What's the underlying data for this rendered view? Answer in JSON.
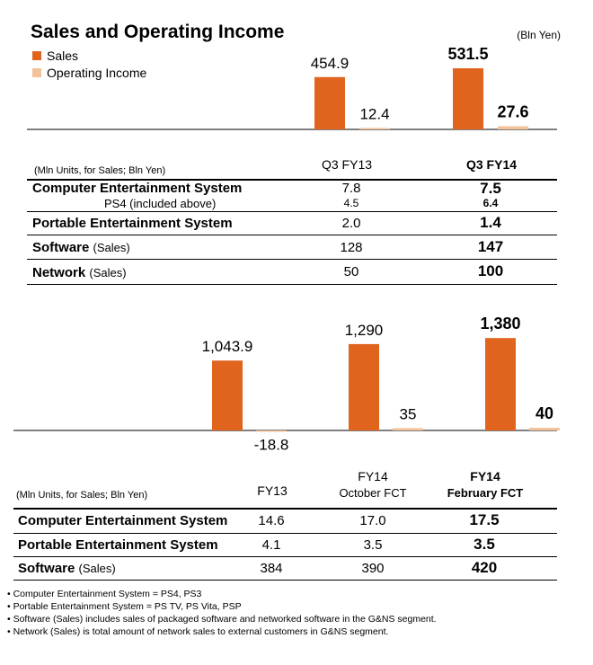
{
  "header": {
    "title": "Sales and Operating Income",
    "unit": "(Bln Yen)"
  },
  "legend": [
    {
      "label": "Sales",
      "color": "#E0641E"
    },
    {
      "label": "Operating Income",
      "color": "#F2C29B"
    }
  ],
  "chart_data": [
    {
      "type": "bar",
      "categories": [
        "Q3 FY13",
        "Q3 FY14"
      ],
      "series": [
        {
          "name": "Sales",
          "values": [
            454.9,
            531.5
          ],
          "labels": [
            "454.9",
            "531.5"
          ],
          "color": "#E0641E"
        },
        {
          "name": "Operating Income",
          "values": [
            12.4,
            27.6
          ],
          "labels": [
            "12.4",
            "27.6"
          ],
          "color": "#F2C29B"
        }
      ],
      "bold_category": 1
    },
    {
      "type": "bar",
      "categories": [
        "FY13",
        "FY14 October FCT",
        "FY14 February FCT"
      ],
      "series": [
        {
          "name": "Sales",
          "values": [
            1043.9,
            1290,
            1380
          ],
          "labels": [
            "1,043.9",
            "1,290",
            "1,380"
          ],
          "color": "#E0641E"
        },
        {
          "name": "Operating Income",
          "values": [
            -18.8,
            35,
            40
          ],
          "labels": [
            "-18.8",
            "35",
            "40"
          ],
          "color": "#F2C29B"
        }
      ],
      "bold_category": 2
    }
  ],
  "table1": {
    "unit": "(Mln Units, for Sales; Bln Yen)",
    "headers": [
      "Q3 FY13",
      "Q3 FY14"
    ],
    "rows": [
      {
        "label": "Computer Entertainment System",
        "sub": "",
        "values": [
          "7.8",
          "7.5"
        ]
      },
      {
        "label": "PS4 (included above)",
        "sub": "",
        "values": [
          "4.5",
          "6.4"
        ]
      },
      {
        "label": "Portable Entertainment System",
        "sub": "",
        "values": [
          "2.0",
          "1.4"
        ]
      },
      {
        "label": "Software",
        "sub": "(Sales)",
        "values": [
          "128",
          "147"
        ]
      },
      {
        "label": "Network",
        "sub": "(Sales)",
        "values": [
          "50",
          "100"
        ]
      }
    ]
  },
  "table2": {
    "unit": "(Mln Units, for Sales; Bln Yen)",
    "headers": [
      {
        "line1": "FY13",
        "line2": ""
      },
      {
        "line1": "FY14",
        "line2": "October FCT"
      },
      {
        "line1": "FY14",
        "line2": "February FCT"
      }
    ],
    "rows": [
      {
        "label": "Computer Entertainment System",
        "sub": "",
        "values": [
          "14.6",
          "17.0",
          "17.5"
        ]
      },
      {
        "label": "Portable Entertainment System",
        "sub": "",
        "values": [
          "4.1",
          "3.5",
          "3.5"
        ]
      },
      {
        "label": "Software",
        "sub": "(Sales)",
        "values": [
          "384",
          "390",
          "420"
        ]
      }
    ]
  },
  "footnotes": [
    "Computer Entertainment System = PS4, PS3",
    "Portable Entertainment System = PS TV, PS Vita, PSP",
    "Software (Sales) includes sales of packaged software and networked software in the G&NS segment.",
    "Network (Sales) is total amount of network sales to external customers in G&NS segment."
  ]
}
